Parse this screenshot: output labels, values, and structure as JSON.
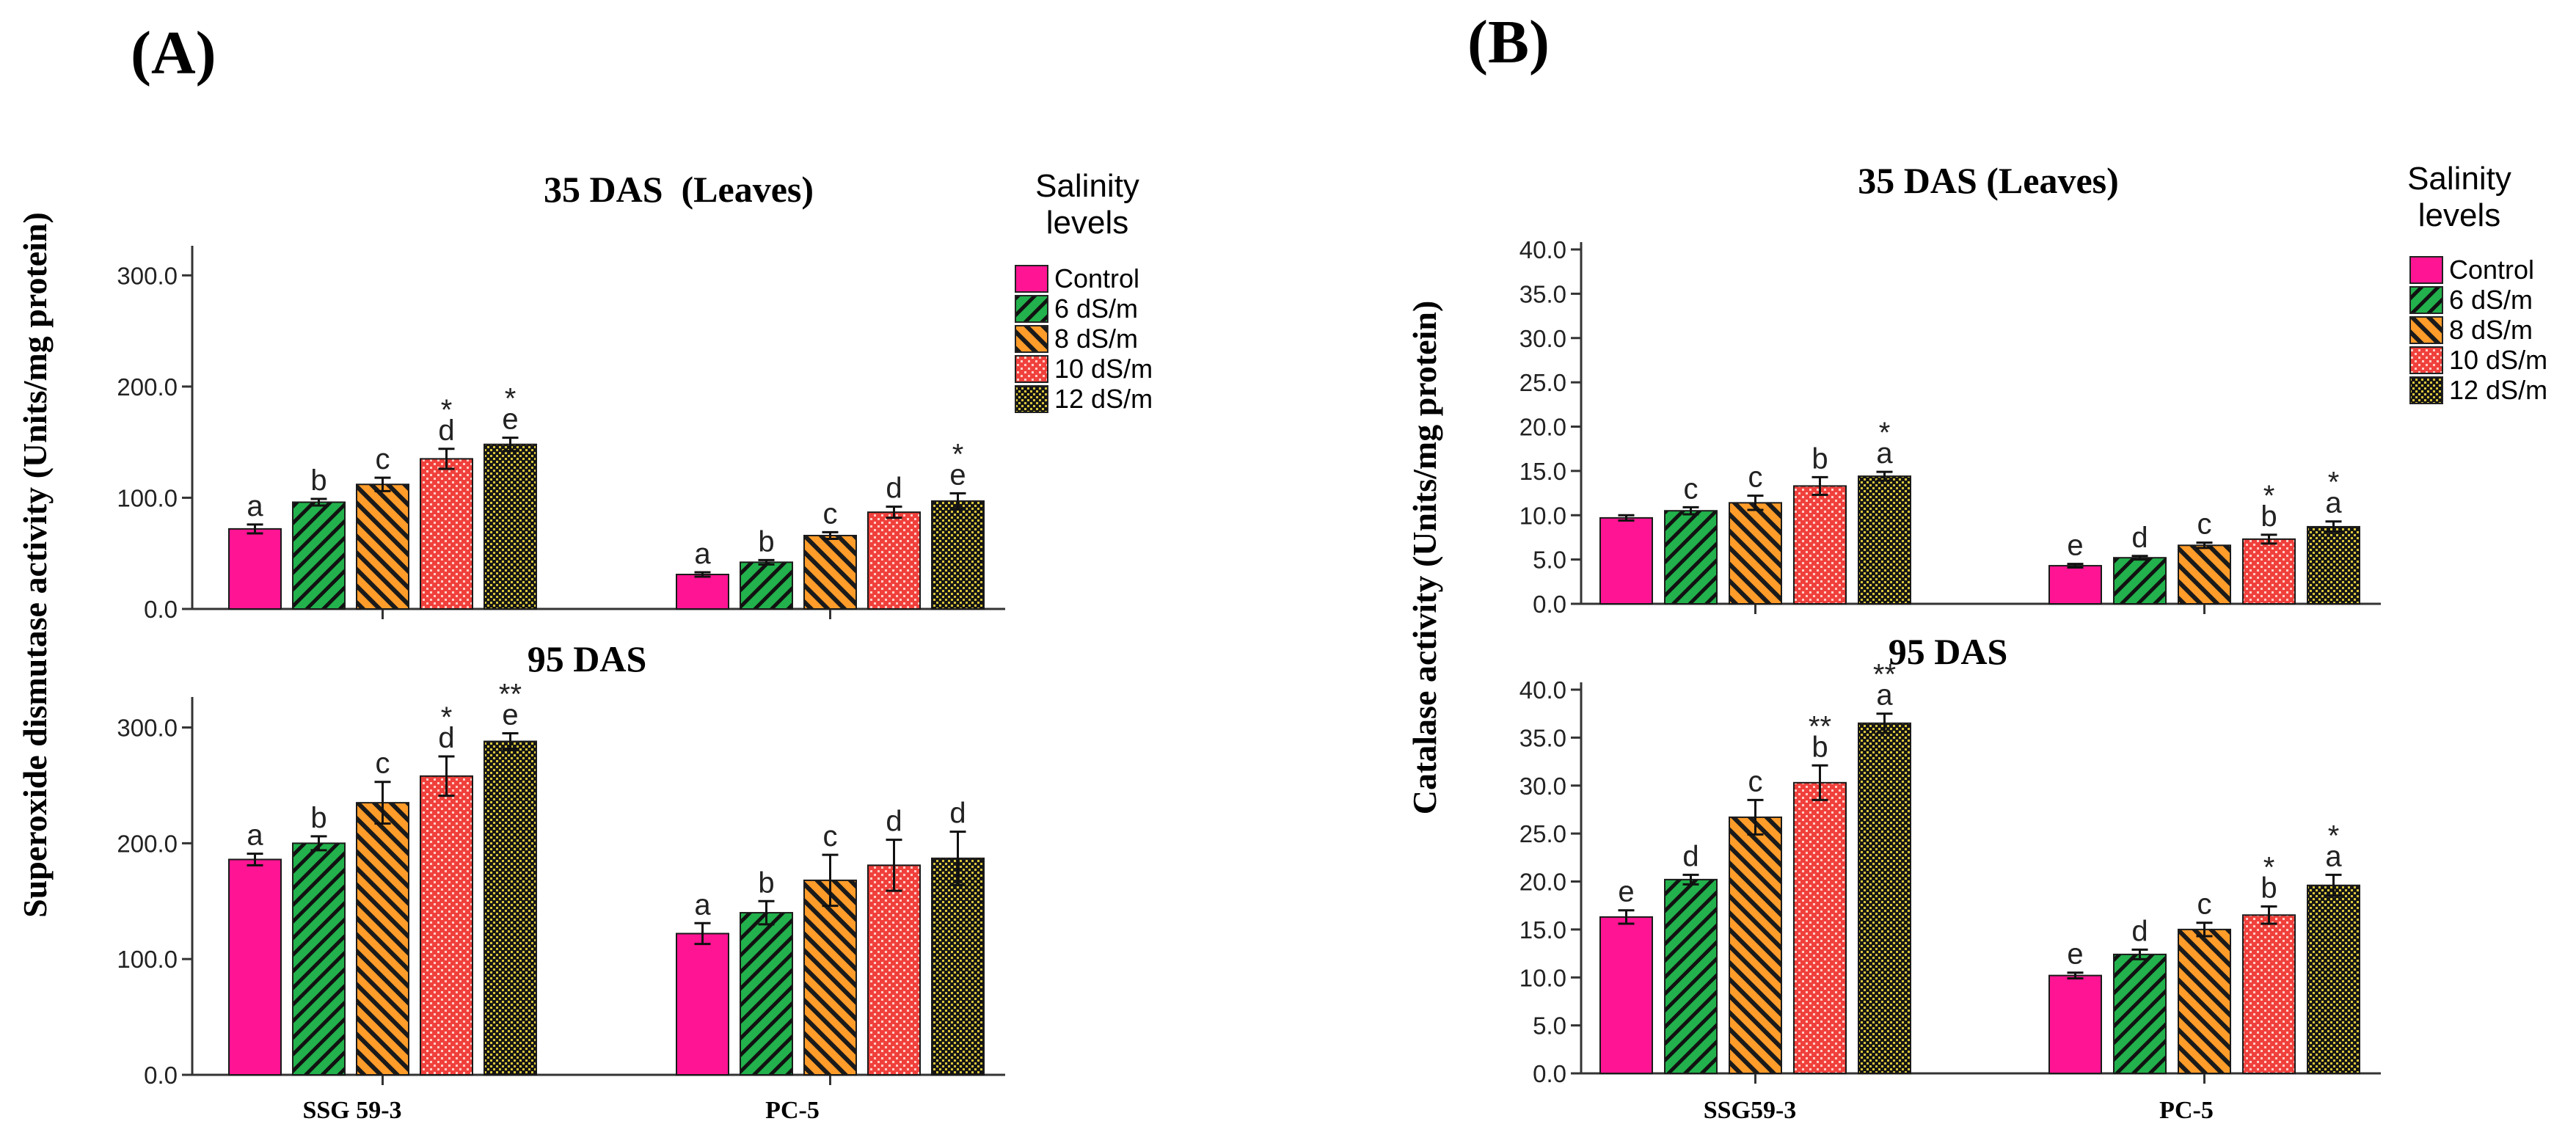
{
  "panels": [
    {
      "label": "(A)",
      "ylabel": "Superoxide dismutase activity (Units/mg protein)",
      "legend": {
        "title_lines": [
          "Salinity",
          "levels"
        ],
        "items": [
          "Control",
          "6 dS/m",
          "8 dS/m",
          "10 dS/m",
          "12 dS/m"
        ]
      },
      "xcategories": [
        "SSG 59-3",
        "PC-5"
      ]
    },
    {
      "label": "(B)",
      "ylabel": "Catalase activity (Units/mg protein)",
      "legend": {
        "title_lines": [
          "Salinity",
          "levels"
        ],
        "items": [
          "Control",
          "6 dS/m",
          "8 dS/m",
          "10 dS/m",
          "12 dS/m"
        ]
      },
      "xcategories": [
        "SSG59-3",
        "PC-5"
      ]
    }
  ],
  "colors": {
    "control": "#ff1493",
    "ds6": "#22b14c",
    "ds8": "#ff9c2a",
    "ds10": "#f0403c",
    "ds12": "#8a8a1e",
    "axis": "#333333"
  },
  "chart_data": [
    {
      "type": "bar",
      "title": "35 DAS  (Leaves)",
      "categories": [
        "SSG 59-3",
        "PC-5"
      ],
      "series": [
        {
          "name": "Control",
          "values": [
            72,
            31
          ],
          "errors": [
            4,
            2
          ],
          "labels": [
            "a",
            "a"
          ],
          "stars": [
            "",
            ""
          ]
        },
        {
          "name": "6 dS/m",
          "values": [
            96,
            42
          ],
          "errors": [
            3,
            2
          ],
          "labels": [
            "b",
            "b"
          ],
          "stars": [
            "",
            ""
          ]
        },
        {
          "name": "8 dS/m",
          "values": [
            112,
            66
          ],
          "errors": [
            6,
            3
          ],
          "labels": [
            "c",
            "c"
          ],
          "stars": [
            "",
            ""
          ]
        },
        {
          "name": "10 dS/m",
          "values": [
            135,
            87
          ],
          "errors": [
            9,
            5
          ],
          "labels": [
            "d",
            "d"
          ],
          "stars": [
            "*",
            ""
          ]
        },
        {
          "name": "12 dS/m",
          "values": [
            148,
            97
          ],
          "errors": [
            6,
            7
          ],
          "labels": [
            "e",
            "e"
          ],
          "stars": [
            "*",
            "*"
          ]
        }
      ],
      "yticks": [
        "0.0",
        "100.0",
        "200.0",
        "300.0"
      ],
      "ylim": [
        0,
        320
      ]
    },
    {
      "type": "bar",
      "title": "95 DAS",
      "categories": [
        "SSG 59-3",
        "PC-5"
      ],
      "series": [
        {
          "name": "Control",
          "values": [
            186,
            122
          ],
          "errors": [
            5,
            9
          ],
          "labels": [
            "a",
            "a"
          ],
          "stars": [
            "",
            ""
          ]
        },
        {
          "name": "6 dS/m",
          "values": [
            200,
            140
          ],
          "errors": [
            6,
            10
          ],
          "labels": [
            "b",
            "b"
          ],
          "stars": [
            "",
            ""
          ]
        },
        {
          "name": "8 dS/m",
          "values": [
            235,
            168
          ],
          "errors": [
            18,
            22
          ],
          "labels": [
            "c",
            "c"
          ],
          "stars": [
            "",
            ""
          ]
        },
        {
          "name": "10 dS/m",
          "values": [
            258,
            181
          ],
          "errors": [
            17,
            22
          ],
          "labels": [
            "d",
            "d"
          ],
          "stars": [
            "*",
            ""
          ]
        },
        {
          "name": "12 dS/m",
          "values": [
            288,
            187
          ],
          "errors": [
            7,
            23
          ],
          "labels": [
            "e",
            "d"
          ],
          "stars": [
            "**",
            ""
          ]
        }
      ],
      "yticks": [
        "0.0",
        "100.0",
        "200.0",
        "300.0"
      ],
      "ylim": [
        0,
        320
      ]
    },
    {
      "type": "bar",
      "title": "35 DAS (Leaves)",
      "categories": [
        "SSG59-3",
        "PC-5"
      ],
      "series": [
        {
          "name": "Control",
          "values": [
            9.7,
            4.3
          ],
          "errors": [
            0.3,
            0.2
          ],
          "labels": [
            "",
            "e"
          ],
          "stars": [
            "",
            ""
          ]
        },
        {
          "name": "6 dS/m",
          "values": [
            10.5,
            5.2
          ],
          "errors": [
            0.4,
            0.2
          ],
          "labels": [
            "c",
            "d"
          ],
          "stars": [
            "",
            ""
          ]
        },
        {
          "name": "8 dS/m",
          "values": [
            11.4,
            6.6
          ],
          "errors": [
            0.8,
            0.3
          ],
          "labels": [
            "c",
            "c"
          ],
          "stars": [
            "",
            ""
          ]
        },
        {
          "name": "10 dS/m",
          "values": [
            13.3,
            7.3
          ],
          "errors": [
            1.0,
            0.5
          ],
          "labels": [
            "b",
            "b"
          ],
          "stars": [
            "",
            "*"
          ]
        },
        {
          "name": "12 dS/m",
          "values": [
            14.4,
            8.7
          ],
          "errors": [
            0.5,
            0.6
          ],
          "labels": [
            "a",
            "a"
          ],
          "stars": [
            "*",
            "*"
          ]
        }
      ],
      "yticks": [
        "0.0",
        "5.0",
        "10.0",
        "15.0",
        "20.0",
        "25.0",
        "30.0",
        "35.0",
        "40.0"
      ],
      "ylim": [
        0,
        40
      ]
    },
    {
      "type": "bar",
      "title": "95 DAS",
      "categories": [
        "SSG59-3",
        "PC-5"
      ],
      "series": [
        {
          "name": "Control",
          "values": [
            16.3,
            10.2
          ],
          "errors": [
            0.7,
            0.3
          ],
          "labels": [
            "e",
            "e"
          ],
          "stars": [
            "",
            ""
          ]
        },
        {
          "name": "6 dS/m",
          "values": [
            20.2,
            12.4
          ],
          "errors": [
            0.5,
            0.5
          ],
          "labels": [
            "d",
            "d"
          ],
          "stars": [
            "",
            ""
          ]
        },
        {
          "name": "8 dS/m",
          "values": [
            26.7,
            15.0
          ],
          "errors": [
            1.8,
            0.7
          ],
          "labels": [
            "c",
            "c"
          ],
          "stars": [
            "",
            ""
          ]
        },
        {
          "name": "10 dS/m",
          "values": [
            30.3,
            16.5
          ],
          "errors": [
            1.8,
            0.9
          ],
          "labels": [
            "b",
            "b"
          ],
          "stars": [
            "**",
            "*"
          ]
        },
        {
          "name": "12 dS/m",
          "values": [
            36.5,
            19.6
          ],
          "errors": [
            1.0,
            1.1
          ],
          "labels": [
            "a",
            "a"
          ],
          "stars": [
            "**",
            "*"
          ]
        }
      ],
      "yticks": [
        "0.0",
        "5.0",
        "10.0",
        "15.0",
        "20.0",
        "25.0",
        "30.0",
        "35.0",
        "40.0"
      ],
      "ylim": [
        0,
        40
      ]
    }
  ]
}
